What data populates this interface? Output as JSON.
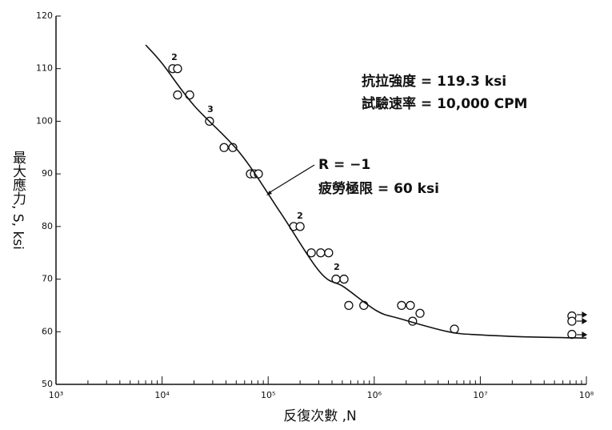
{
  "chart_data": {
    "type": "scatter",
    "x_label": "反復次數 ,N",
    "y_label": "最大應力, S, ksi",
    "xlim": [
      1000,
      100000000
    ],
    "xlog": true,
    "minor_ticks": true,
    "xticks": [
      {
        "value": 1000,
        "label": "10³"
      },
      {
        "value": 10000,
        "label": "10⁴"
      },
      {
        "value": 100000,
        "label": "10⁵"
      },
      {
        "value": 1000000,
        "label": "10⁶"
      },
      {
        "value": 10000000,
        "label": "10⁷"
      },
      {
        "value": 100000000,
        "label": "10⁸"
      }
    ],
    "ylim": [
      50,
      120
    ],
    "yticks": [
      50,
      60,
      70,
      80,
      90,
      100,
      110,
      120
    ],
    "color": "#111111",
    "series": [
      {
        "type": "scatter",
        "x": [
          12600,
          14000,
          14000,
          18200,
          28000,
          38400,
          46400,
          68000,
          74100,
          80900,
          174000,
          200000,
          255000,
          313000,
          372000,
          436000,
          519000,
          575000,
          797000,
          1810000,
          2190000,
          2300000,
          2700000,
          5700000,
          73000000,
          73000000,
          73000000
        ],
        "values": [
          110,
          110,
          105,
          105,
          100,
          95,
          95,
          90,
          90,
          90,
          80,
          80,
          75,
          75,
          75,
          70,
          70,
          65,
          65,
          65,
          65,
          62,
          63.5,
          60.5,
          63,
          62,
          59.5
        ]
      },
      {
        "type": "line",
        "x": [
          7000,
          10000,
          20000,
          54000,
          130000,
          309000,
          519000,
          1050000,
          1740000,
          5000000,
          10000000,
          30000000,
          100000000
        ],
        "values": [
          114.5,
          111,
          103,
          94,
          82.7,
          71.3,
          68.5,
          64,
          62.5,
          60,
          59.4,
          59,
          58.8
        ]
      }
    ],
    "annotations": [
      "2",
      "3",
      "2",
      "2",
      "R = −1",
      "疲勞極限 = 60 ksi",
      "抗拉強度 = 119.3 ksi",
      "試驗速率 = 10,000 CPM"
    ]
  }
}
